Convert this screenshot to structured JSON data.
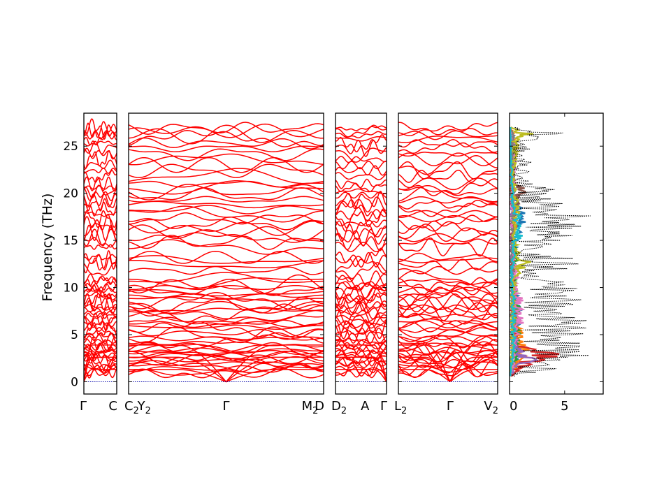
{
  "chart_data": {
    "type": "line",
    "ylabel": "Frequency (THz)",
    "ylim": [
      -1.3,
      28.5
    ],
    "y_ticks": [
      0,
      5,
      10,
      15,
      20,
      25
    ],
    "band_color": "#ff0000",
    "zero_line_color": "#0000aa",
    "panels": [
      {
        "name": "gamma-c",
        "ticks": [
          {
            "base": "Γ",
            "sub": "",
            "align": "start"
          },
          {
            "base": "C",
            "sub": "",
            "align": "end"
          }
        ]
      },
      {
        "name": "c2-y2-gamma-m2-d",
        "ticks": [
          {
            "base": "C",
            "sub": "2",
            "align": "start"
          },
          {
            "base": "Y",
            "sub": "2",
            "align": "mid",
            "x": 0.08
          },
          {
            "base": "Γ",
            "sub": "",
            "align": "mid",
            "x": 0.5
          },
          {
            "base": "M",
            "sub": "2",
            "align": "mid",
            "x": 0.93
          },
          {
            "base": "D",
            "sub": "",
            "align": "end"
          }
        ]
      },
      {
        "name": "d2-a-gamma",
        "ticks": [
          {
            "base": "D",
            "sub": "2",
            "align": "start"
          },
          {
            "base": "A",
            "sub": "",
            "align": "mid",
            "x": 0.58
          },
          {
            "base": "Γ",
            "sub": "",
            "align": "end"
          }
        ]
      },
      {
        "name": "l2-gamma-v2",
        "ticks": [
          {
            "base": "L",
            "sub": "2",
            "align": "start"
          },
          {
            "base": "Γ",
            "sub": "",
            "align": "mid",
            "x": 0.52
          },
          {
            "base": "V",
            "sub": "2",
            "align": "end"
          }
        ]
      }
    ],
    "band_levels_thz": [
      0,
      0,
      0,
      0.9,
      1.2,
      1.4,
      1.6,
      1.9,
      2.1,
      2.3,
      2.5,
      2.7,
      2.9,
      3.1,
      3.3,
      3.5,
      3.7,
      4.0,
      4.3,
      4.6,
      4.9,
      5.2,
      5.5,
      5.8,
      6.1,
      6.4,
      6.7,
      7.0,
      7.3,
      7.6,
      7.9,
      8.2,
      8.5,
      8.8,
      9.1,
      9.4,
      9.7,
      10.0,
      10.3,
      10.6,
      10.9,
      11.8,
      12.4,
      12.9,
      13.2,
      14.3,
      14.8,
      15.3,
      15.8,
      16.3,
      16.8,
      17.3,
      17.8,
      18.3,
      18.8,
      19.3,
      19.8,
      20.2,
      20.6,
      21.0,
      21.8,
      22.4,
      23.0,
      23.6,
      24.2,
      24.8,
      25.3,
      25.8,
      26.2,
      26.6,
      26.9
    ],
    "dos": {
      "xlim": [
        0,
        8.5
      ],
      "x_ticks": [
        0,
        5
      ],
      "total_color": "#000000",
      "total": [
        [
          0.6,
          0.6
        ],
        [
          1.0,
          2.5
        ],
        [
          1.5,
          5.0
        ],
        [
          2.0,
          6.5
        ],
        [
          2.5,
          7.5
        ],
        [
          3.0,
          8.0
        ],
        [
          3.5,
          6.8
        ],
        [
          4.0,
          7.2
        ],
        [
          4.5,
          5.5
        ],
        [
          5.0,
          7.6
        ],
        [
          5.5,
          8.3
        ],
        [
          6.0,
          8.0
        ],
        [
          6.5,
          7.0
        ],
        [
          7.0,
          6.6
        ],
        [
          7.5,
          7.4
        ],
        [
          8.0,
          6.9
        ],
        [
          8.5,
          7.2
        ],
        [
          9.0,
          6.2
        ],
        [
          9.5,
          6.7
        ],
        [
          10.0,
          7.6
        ],
        [
          10.5,
          5.8
        ],
        [
          11.0,
          3.8
        ],
        [
          11.5,
          2.6
        ],
        [
          12.0,
          5.5
        ],
        [
          12.5,
          7.5
        ],
        [
          13.0,
          6.5
        ],
        [
          13.5,
          3.5
        ],
        [
          14.0,
          1.8
        ],
        [
          14.5,
          3.8
        ],
        [
          15.0,
          5.5
        ],
        [
          15.5,
          6.0
        ],
        [
          16.0,
          5.2
        ],
        [
          16.5,
          7.0
        ],
        [
          17.0,
          6.5
        ],
        [
          17.5,
          7.8
        ],
        [
          18.0,
          6.0
        ],
        [
          18.5,
          4.5
        ],
        [
          19.0,
          5.2
        ],
        [
          19.5,
          3.4
        ],
        [
          20.0,
          3.8
        ],
        [
          20.5,
          4.3
        ],
        [
          21.0,
          2.2
        ],
        [
          21.5,
          1.5
        ],
        [
          22.0,
          2.0
        ],
        [
          22.5,
          1.6
        ],
        [
          23.0,
          1.9
        ],
        [
          23.5,
          2.2
        ],
        [
          24.0,
          1.2
        ],
        [
          24.5,
          1.8
        ],
        [
          25.0,
          2.0
        ],
        [
          25.5,
          2.3
        ],
        [
          26.0,
          4.0
        ],
        [
          26.3,
          6.6
        ],
        [
          26.6,
          3.0
        ],
        [
          27.0,
          0.4
        ]
      ],
      "partials": [
        {
          "color": "#1f77b4",
          "points": [
            [
              0.6,
              0.1
            ],
            [
              1.8,
              0.8
            ],
            [
              3.0,
              1.2
            ],
            [
              5.0,
              0.9
            ],
            [
              7.0,
              1.1
            ],
            [
              9.0,
              0.8
            ],
            [
              10.0,
              0.6
            ],
            [
              12.5,
              0.5
            ],
            [
              14.5,
              0.7
            ],
            [
              15.5,
              1.1
            ],
            [
              16.5,
              1.6
            ],
            [
              17.3,
              2.2
            ],
            [
              18.0,
              1.4
            ],
            [
              19.5,
              0.6
            ],
            [
              22.0,
              0.3
            ],
            [
              25.5,
              0.5
            ],
            [
              27.0,
              0.1
            ]
          ]
        },
        {
          "color": "#ff7f0e",
          "points": [
            [
              0.6,
              0.1
            ],
            [
              2.0,
              1.0
            ],
            [
              3.4,
              2.0
            ],
            [
              4.5,
              1.3
            ],
            [
              6.0,
              1.2
            ],
            [
              8.0,
              0.7
            ],
            [
              10.0,
              0.5
            ],
            [
              12.8,
              0.6
            ],
            [
              15.0,
              0.5
            ],
            [
              17.0,
              0.7
            ],
            [
              20.0,
              0.4
            ],
            [
              23.0,
              0.3
            ],
            [
              26.0,
              0.6
            ],
            [
              27.0,
              0.1
            ]
          ]
        },
        {
          "color": "#2ca02c",
          "points": [
            [
              0.6,
              0.1
            ],
            [
              2.5,
              0.8
            ],
            [
              5.0,
              1.1
            ],
            [
              7.5,
              0.9
            ],
            [
              9.5,
              0.8
            ],
            [
              12.0,
              0.5
            ],
            [
              13.0,
              0.8
            ],
            [
              15.5,
              0.4
            ],
            [
              18.0,
              0.5
            ],
            [
              21.0,
              0.3
            ],
            [
              25.0,
              0.4
            ],
            [
              27.0,
              0.1
            ]
          ]
        },
        {
          "color": "#d62728",
          "points": [
            [
              0.6,
              0.2
            ],
            [
              1.5,
              1.2
            ],
            [
              2.2,
              3.0
            ],
            [
              2.8,
              5.5
            ],
            [
              3.2,
              3.5
            ],
            [
              4.0,
              0.9
            ],
            [
              6.0,
              0.6
            ],
            [
              9.0,
              0.5
            ],
            [
              13.0,
              0.4
            ],
            [
              18.0,
              0.4
            ],
            [
              22.0,
              0.3
            ],
            [
              27.0,
              0.1
            ]
          ]
        },
        {
          "color": "#9467bd",
          "points": [
            [
              0.6,
              0.1
            ],
            [
              1.6,
              1.0
            ],
            [
              2.3,
              2.5
            ],
            [
              3.0,
              1.6
            ],
            [
              4.2,
              0.7
            ],
            [
              7.0,
              0.6
            ],
            [
              10.5,
              0.4
            ],
            [
              14.0,
              0.3
            ],
            [
              19.0,
              0.4
            ],
            [
              24.0,
              0.5
            ],
            [
              27.0,
              0.1
            ]
          ]
        },
        {
          "color": "#8c564b",
          "points": [
            [
              0.6,
              0.1
            ],
            [
              3.0,
              0.4
            ],
            [
              8.0,
              0.5
            ],
            [
              12.0,
              0.3
            ],
            [
              16.0,
              0.4
            ],
            [
              19.5,
              1.0
            ],
            [
              20.3,
              1.8
            ],
            [
              21.0,
              0.6
            ],
            [
              23.5,
              0.4
            ],
            [
              27.0,
              0.1
            ]
          ]
        },
        {
          "color": "#e377c2",
          "points": [
            [
              0.6,
              0.1
            ],
            [
              2.0,
              0.5
            ],
            [
              4.0,
              0.6
            ],
            [
              6.5,
              1.4
            ],
            [
              8.5,
              1.5
            ],
            [
              9.5,
              0.7
            ],
            [
              12.5,
              1.0
            ],
            [
              13.0,
              0.5
            ],
            [
              17.0,
              0.4
            ],
            [
              21.5,
              0.5
            ],
            [
              25.0,
              0.7
            ],
            [
              27.0,
              0.1
            ]
          ]
        },
        {
          "color": "#7f7f7f",
          "points": [
            [
              0.6,
              0.1
            ],
            [
              4.0,
              0.4
            ],
            [
              9.0,
              0.4
            ],
            [
              14.0,
              0.3
            ],
            [
              18.5,
              0.6
            ],
            [
              22.5,
              0.4
            ],
            [
              26.0,
              0.5
            ],
            [
              27.0,
              0.1
            ]
          ]
        },
        {
          "color": "#bcbd22",
          "points": [
            [
              0.6,
              0.1
            ],
            [
              3.0,
              0.4
            ],
            [
              7.0,
              0.5
            ],
            [
              10.0,
              0.5
            ],
            [
              12.0,
              1.2
            ],
            [
              12.6,
              2.8
            ],
            [
              13.1,
              1.4
            ],
            [
              15.0,
              0.5
            ],
            [
              18.0,
              1.0
            ],
            [
              22.0,
              0.4
            ],
            [
              25.5,
              0.9
            ],
            [
              26.3,
              2.2
            ],
            [
              26.7,
              0.8
            ],
            [
              27.0,
              0.1
            ]
          ]
        },
        {
          "color": "#17becf",
          "points": [
            [
              0.6,
              0.1
            ],
            [
              3.5,
              0.5
            ],
            [
              8.0,
              0.6
            ],
            [
              11.0,
              0.3
            ],
            [
              14.5,
              0.6
            ],
            [
              15.5,
              1.2
            ],
            [
              16.5,
              1.0
            ],
            [
              17.5,
              1.6
            ],
            [
              18.5,
              0.5
            ],
            [
              21.0,
              0.3
            ],
            [
              27.0,
              0.1
            ]
          ]
        }
      ]
    }
  }
}
